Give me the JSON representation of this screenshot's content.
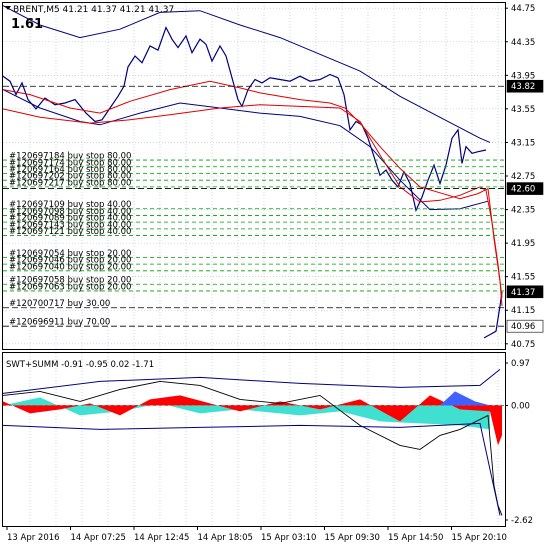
{
  "main_chart": {
    "symbol_line": "BRENT,M5  41.21 41.37 41.21 41.37",
    "indicator_value": "1.61",
    "price_axis": [
      "44.75",
      "44.35",
      "43.95",
      "43.55",
      "43.15",
      "42.75",
      "42.35",
      "41.95",
      "41.55",
      "41.15",
      "40.75"
    ],
    "price_axis_range": [
      40.7,
      44.8
    ],
    "price_tags": [
      {
        "text": "43.82",
        "price": 43.82,
        "bg": "#000000",
        "color": "#ffffff"
      },
      {
        "text": "42.60",
        "price": 42.6,
        "bg": "#000000",
        "color": "#ffffff"
      },
      {
        "text": "41.37",
        "price": 41.37,
        "bg": "#000000",
        "color": "#ffffff"
      },
      {
        "text": "40.96",
        "price": 40.96,
        "bg": "#ffffff",
        "color": "#000000"
      }
    ],
    "order_labels": [
      {
        "text": "#120697184 buy stop 80.00",
        "price": 42.94
      },
      {
        "text": "#120697174 buy stop 80.00",
        "price": 42.86
      },
      {
        "text": "#120697164 buy stop 80.00",
        "price": 42.78
      },
      {
        "text": "#120697202 buy stop 80.00",
        "price": 42.7
      },
      {
        "text": "#120697217 buy stop 80.00",
        "price": 42.62
      },
      {
        "text": "#120697109 buy stop 40.00",
        "price": 42.36
      },
      {
        "text": "#120697098 buy stop 40.00",
        "price": 42.28
      },
      {
        "text": "#120697089 buy stop 40.00",
        "price": 42.2
      },
      {
        "text": "#120697143 buy stop 40.00",
        "price": 42.12
      },
      {
        "text": "#120697121 buy stop 40.00",
        "price": 42.04
      },
      {
        "text": "#120697054 buy stop 20.00",
        "price": 41.78
      },
      {
        "text": "#120697046 buy stop 20.00",
        "price": 41.7
      },
      {
        "text": "#120697040 buy stop 20.00",
        "price": 41.62
      },
      {
        "text": "#120697058 buy stop 20.00",
        "price": 41.46
      },
      {
        "text": "#120697063 buy stop 20.00",
        "price": 41.38
      },
      {
        "text": "#120700717 buy 30.00",
        "price": 41.18
      },
      {
        "text": "#120696911 buy 70.00",
        "price": 40.96
      }
    ],
    "colors": {
      "price": "#000080",
      "ma": "#e00000",
      "order_line": "#00a000",
      "grid": "#a8c0d8"
    }
  },
  "sub_window": {
    "title_line": "SWT+SUMM -0.91 -0.95 0.02 -1.71",
    "axis": [
      "0.97",
      "0.00",
      "-2.62"
    ],
    "axis_range": [
      -2.62,
      0.97
    ],
    "colors": {
      "red": "#ff0000",
      "teal": "#40e0d0",
      "blue": "#4060ff",
      "line": "#000080"
    }
  },
  "time_axis": [
    "13 Apr 2016",
    "14 Apr 07:25",
    "14 Apr 12:45",
    "14 Apr 18:05",
    "15 Apr 03:10",
    "15 Apr 09:30",
    "15 Apr 14:50",
    "15 Apr 20:10"
  ]
}
